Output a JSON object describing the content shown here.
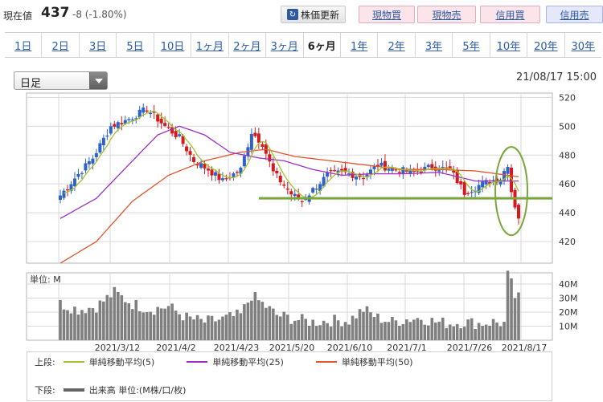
{
  "header": {
    "price_label": "現在値",
    "price_value": "437",
    "price_change": "-8 (-1.80%)",
    "buttons": {
      "refresh": "株価更新",
      "refresh_icon": "refresh-icon",
      "spot_buy": "現物買",
      "spot_sell": "現物売",
      "margin_buy": "信用買",
      "margin_sell": "信用売"
    }
  },
  "tabs": [
    {
      "label": "1日",
      "active": false
    },
    {
      "label": "2日",
      "active": false
    },
    {
      "label": "3日",
      "active": false
    },
    {
      "label": "5日",
      "active": false
    },
    {
      "label": "10日",
      "active": false
    },
    {
      "label": "1ヶ月",
      "active": false
    },
    {
      "label": "2ヶ月",
      "active": false
    },
    {
      "label": "3ヶ月",
      "active": false
    },
    {
      "label": "6ヶ月",
      "active": true
    },
    {
      "label": "1年",
      "active": false
    },
    {
      "label": "2年",
      "active": false
    },
    {
      "label": "3年",
      "active": false
    },
    {
      "label": "5年",
      "active": false
    },
    {
      "label": "10年",
      "active": false
    },
    {
      "label": "20年",
      "active": false
    },
    {
      "label": "30年",
      "active": false
    }
  ],
  "period_select": {
    "value": "日足"
  },
  "timestamp": "21/08/17 15:00",
  "legend": {
    "upper_label": "上段:",
    "lower_label": "下段:",
    "items": [
      {
        "label": "単純移動平均(5)",
        "color": "#a3c22c"
      },
      {
        "label": "単純移動平均(25)",
        "color": "#9b2fc4"
      },
      {
        "label": "単純移動平均(50)",
        "color": "#e0552a"
      }
    ],
    "volume_label": "出来高 単位:(M株/口/枚)"
  },
  "chart_data": [
    {
      "type": "candlestick",
      "title": "",
      "y_ticks": [
        "520",
        "500",
        "480",
        "460",
        "440",
        "420"
      ],
      "ylim": [
        405,
        523
      ],
      "x_ticks": [
        "2021/3/12",
        "2021/4/2",
        "2021/4/23",
        "2021/5/20",
        "2021/6/10",
        "2021/7/1",
        "2021/7/26",
        "2021/8/17"
      ],
      "grid": true,
      "colors": {
        "up": "#2f62c8",
        "down": "#d5191f",
        "sma5": "#a3c22c",
        "sma25": "#9b2fc4",
        "sma50": "#e0552a",
        "support": "#7aa63b",
        "highlight": "#7aa63b"
      },
      "close_keypoints": [
        {
          "i": 0,
          "v": 452
        },
        {
          "i": 4,
          "v": 464
        },
        {
          "i": 9,
          "v": 478
        },
        {
          "i": 14,
          "v": 500
        },
        {
          "i": 19,
          "v": 505
        },
        {
          "i": 24,
          "v": 512
        },
        {
          "i": 29,
          "v": 500
        },
        {
          "i": 33,
          "v": 492
        },
        {
          "i": 37,
          "v": 476
        },
        {
          "i": 41,
          "v": 470
        },
        {
          "i": 45,
          "v": 462
        },
        {
          "i": 50,
          "v": 470
        },
        {
          "i": 53,
          "v": 496
        },
        {
          "i": 56,
          "v": 488
        },
        {
          "i": 59,
          "v": 468
        },
        {
          "i": 64,
          "v": 453
        },
        {
          "i": 67,
          "v": 448
        },
        {
          "i": 70,
          "v": 456
        },
        {
          "i": 74,
          "v": 466
        },
        {
          "i": 78,
          "v": 468
        },
        {
          "i": 84,
          "v": 465
        },
        {
          "i": 88,
          "v": 473
        },
        {
          "i": 93,
          "v": 470
        },
        {
          "i": 98,
          "v": 468
        },
        {
          "i": 103,
          "v": 472
        },
        {
          "i": 108,
          "v": 470
        },
        {
          "i": 112,
          "v": 454
        },
        {
          "i": 116,
          "v": 459
        },
        {
          "i": 119,
          "v": 462
        },
        {
          "i": 122,
          "v": 464
        },
        {
          "i": 124,
          "v": 474
        },
        {
          "i": 125,
          "v": 455
        },
        {
          "i": 126,
          "v": 445
        },
        {
          "i": 127,
          "v": 437
        }
      ],
      "sma25_keypoints": [
        {
          "i": 0,
          "v": 436
        },
        {
          "i": 10,
          "v": 450
        },
        {
          "i": 20,
          "v": 476
        },
        {
          "i": 27,
          "v": 494
        },
        {
          "i": 33,
          "v": 500
        },
        {
          "i": 40,
          "v": 494
        },
        {
          "i": 47,
          "v": 482
        },
        {
          "i": 55,
          "v": 478
        },
        {
          "i": 62,
          "v": 476
        },
        {
          "i": 70,
          "v": 470
        },
        {
          "i": 78,
          "v": 466
        },
        {
          "i": 86,
          "v": 467
        },
        {
          "i": 95,
          "v": 467
        },
        {
          "i": 105,
          "v": 468
        },
        {
          "i": 115,
          "v": 462
        },
        {
          "i": 127,
          "v": 462
        }
      ],
      "sma50_keypoints": [
        {
          "i": 0,
          "v": 405
        },
        {
          "i": 10,
          "v": 420
        },
        {
          "i": 20,
          "v": 448
        },
        {
          "i": 30,
          "v": 466
        },
        {
          "i": 40,
          "v": 476
        },
        {
          "i": 50,
          "v": 482
        },
        {
          "i": 57,
          "v": 484
        },
        {
          "i": 65,
          "v": 479
        },
        {
          "i": 75,
          "v": 476
        },
        {
          "i": 85,
          "v": 473
        },
        {
          "i": 95,
          "v": 470
        },
        {
          "i": 105,
          "v": 470
        },
        {
          "i": 115,
          "v": 469
        },
        {
          "i": 127,
          "v": 465
        }
      ],
      "support_line": 450,
      "support_from_index": 55
    },
    {
      "type": "bar",
      "title": "",
      "unit_label": "単位: M",
      "y_ticks": [
        "40M",
        "30M",
        "20M",
        "10M"
      ],
      "ylim": [
        0,
        48
      ],
      "volume_keypoints": [
        {
          "i": 0,
          "v": 26
        },
        {
          "i": 5,
          "v": 22
        },
        {
          "i": 10,
          "v": 24
        },
        {
          "i": 15,
          "v": 34
        },
        {
          "i": 20,
          "v": 26
        },
        {
          "i": 25,
          "v": 22
        },
        {
          "i": 30,
          "v": 24
        },
        {
          "i": 35,
          "v": 16
        },
        {
          "i": 40,
          "v": 13
        },
        {
          "i": 45,
          "v": 15
        },
        {
          "i": 50,
          "v": 18
        },
        {
          "i": 53,
          "v": 32
        },
        {
          "i": 56,
          "v": 26
        },
        {
          "i": 60,
          "v": 18
        },
        {
          "i": 65,
          "v": 15
        },
        {
          "i": 70,
          "v": 13
        },
        {
          "i": 75,
          "v": 14
        },
        {
          "i": 80,
          "v": 14
        },
        {
          "i": 84,
          "v": 22
        },
        {
          "i": 88,
          "v": 16
        },
        {
          "i": 92,
          "v": 13
        },
        {
          "i": 96,
          "v": 15
        },
        {
          "i": 100,
          "v": 16
        },
        {
          "i": 104,
          "v": 13
        },
        {
          "i": 108,
          "v": 12
        },
        {
          "i": 112,
          "v": 13
        },
        {
          "i": 116,
          "v": 12
        },
        {
          "i": 120,
          "v": 13
        },
        {
          "i": 123,
          "v": 12
        },
        {
          "i": 124,
          "v": 46
        },
        {
          "i": 125,
          "v": 40
        },
        {
          "i": 126,
          "v": 31
        },
        {
          "i": 127,
          "v": 30
        }
      ]
    }
  ]
}
